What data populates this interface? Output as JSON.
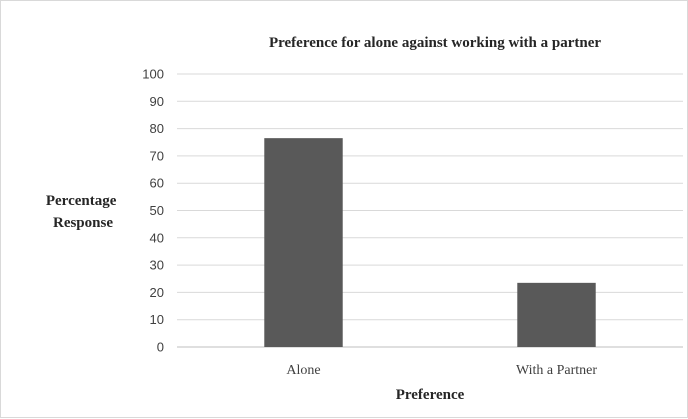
{
  "chart_data": {
    "type": "bar",
    "title": "Preference for alone against working with a partner",
    "xlabel": "Preference",
    "ylabel": [
      "Percentage",
      "Response"
    ],
    "categories": [
      "Alone",
      "With a Partner"
    ],
    "values": [
      76.5,
      23.5
    ],
    "ylim": [
      0,
      100
    ],
    "yticks": [
      0,
      10,
      20,
      30,
      40,
      50,
      60,
      70,
      80,
      90,
      100
    ],
    "grid": true,
    "legend": "none",
    "bar_color": "#595959"
  }
}
